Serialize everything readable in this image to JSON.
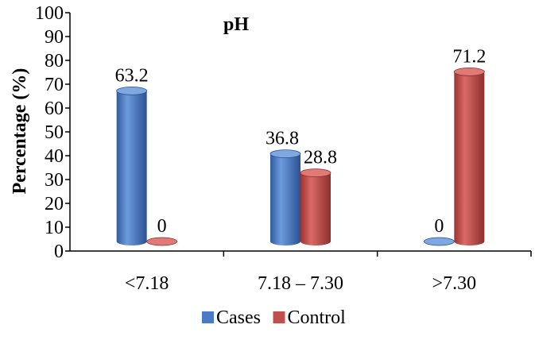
{
  "chart_data": {
    "type": "bar",
    "title": "pH",
    "xlabel": "",
    "ylabel": "Percentage (%)",
    "categories": [
      "<7.18",
      "7.18 – 7.30",
      ">7.30"
    ],
    "ylim": [
      0,
      100
    ],
    "yticks": [
      0,
      10,
      20,
      30,
      40,
      50,
      60,
      70,
      80,
      90,
      100
    ],
    "series": [
      {
        "name": "Cases",
        "values": [
          63.2,
          36.8,
          0
        ],
        "labels": [
          "63.2",
          "36.8",
          "0"
        ],
        "color": "#4A7BC4"
      },
      {
        "name": "Control",
        "values": [
          0,
          28.8,
          71.2
        ],
        "labels": [
          "0",
          "28.8",
          "71.2"
        ],
        "color": "#C0504D"
      }
    ],
    "style": "3d-cylinder",
    "grid": false,
    "legend": "bottom"
  }
}
